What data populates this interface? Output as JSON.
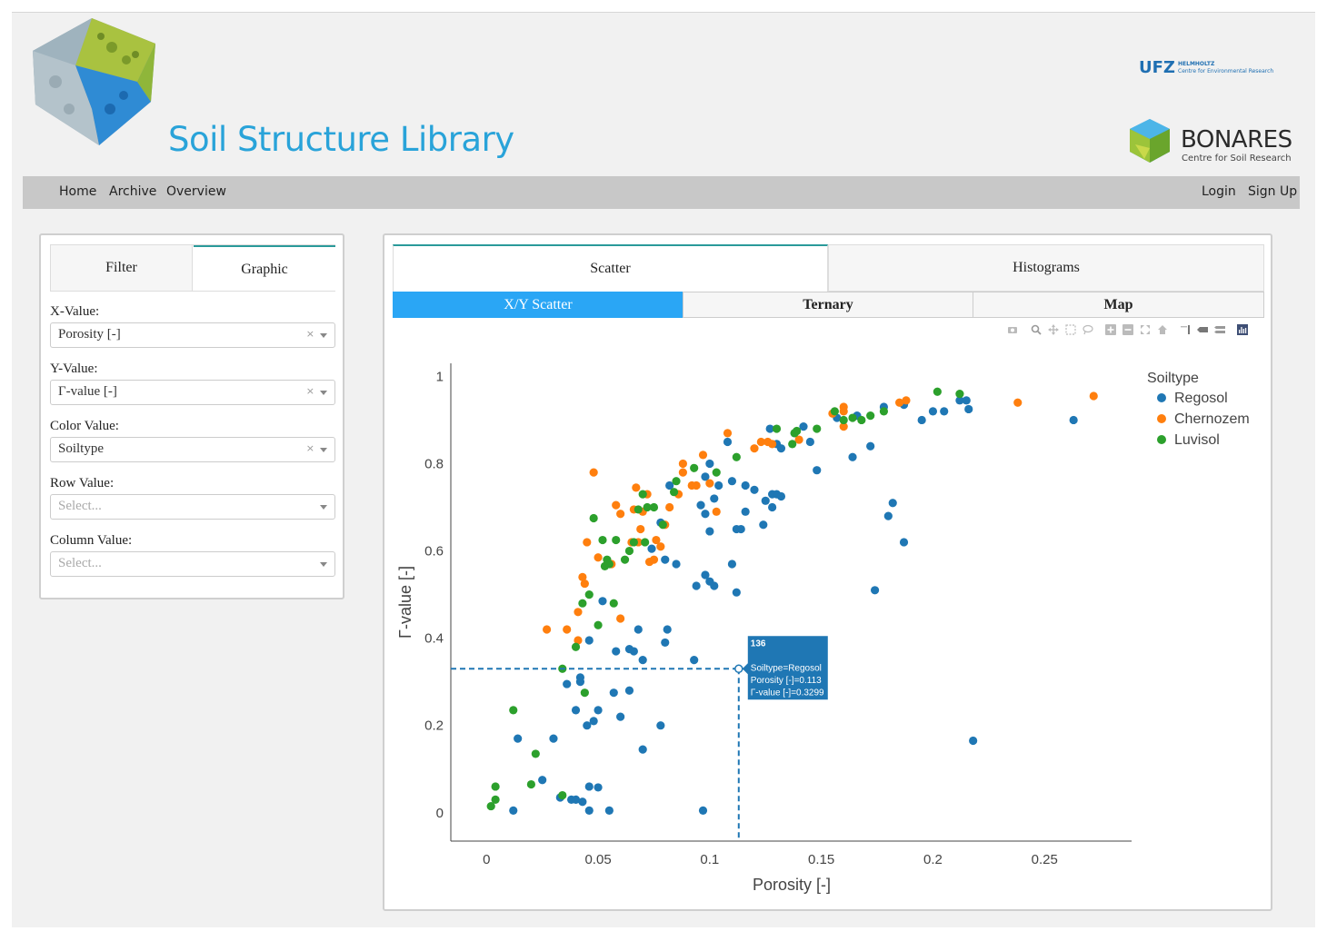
{
  "header": {
    "site_title": "Soil Structure Library",
    "ufz": {
      "mark": "UFZ",
      "line1": "HELMHOLTZ",
      "line2": "Centre for Environmental Research"
    },
    "bonares": {
      "name": "BONARES",
      "subtitle": "Centre for Soil Research"
    }
  },
  "nav": {
    "left": [
      "Home",
      "Archive",
      "Overview"
    ],
    "right": [
      "Login",
      "Sign Up"
    ]
  },
  "sidebar": {
    "tabs": {
      "filter": "Filter",
      "graphic": "Graphic",
      "active": "Graphic"
    },
    "fields": [
      {
        "label": "X-Value:",
        "value": "Porosity [-]",
        "placeholder": ""
      },
      {
        "label": "Y-Value:",
        "value": "Γ-value [-]",
        "placeholder": ""
      },
      {
        "label": "Color Value:",
        "value": "Soiltype",
        "placeholder": ""
      },
      {
        "label": "Row Value:",
        "value": "",
        "placeholder": "Select..."
      },
      {
        "label": "Column Value:",
        "value": "",
        "placeholder": "Select..."
      }
    ],
    "clear_glyph": "×"
  },
  "main": {
    "tabs": [
      "Scatter",
      "Histograms"
    ],
    "active_tab": "Scatter",
    "sub_tabs": [
      "X/Y Scatter",
      "Ternary",
      "Map"
    ],
    "active_sub_tab": "X/Y Scatter",
    "modebar_icons": [
      "camera-icon",
      "zoom-icon",
      "pan-icon",
      "box-select-icon",
      "lasso-select-icon",
      "zoom-in-icon",
      "zoom-out-icon",
      "autoscale-icon",
      "reset-axes-icon",
      "spike-lines-icon",
      "hover-closest-icon",
      "hover-compare-icon",
      "plotly-logo-icon"
    ]
  },
  "chart_data": {
    "type": "scatter",
    "xlabel": "Porosity [-]",
    "ylabel": "Γ-value [-]",
    "xlim": [
      -0.016,
      0.289
    ],
    "ylim": [
      -0.065,
      1.03
    ],
    "xticks": [
      0,
      0.05,
      0.1,
      0.15,
      0.2,
      0.25
    ],
    "xtick_labels": [
      "0",
      "0.05",
      "0.1",
      "0.15",
      "0.2",
      "0.25"
    ],
    "yticks": [
      0,
      0.2,
      0.4,
      0.6,
      0.8,
      1
    ],
    "ytick_labels": [
      "0",
      "0.2",
      "0.4",
      "0.6",
      "0.8",
      "1"
    ],
    "grid": false,
    "legend": {
      "title": "Soiltype",
      "position": "top-right"
    },
    "series": [
      {
        "name": "Regosol",
        "color": "#1f77b4",
        "points": [
          [
            0.012,
            0.005
          ],
          [
            0.014,
            0.17
          ],
          [
            0.03,
            0.17
          ],
          [
            0.025,
            0.075
          ],
          [
            0.033,
            0.035
          ],
          [
            0.038,
            0.03
          ],
          [
            0.04,
            0.03
          ],
          [
            0.043,
            0.025
          ],
          [
            0.046,
            0.005
          ],
          [
            0.055,
            0.005
          ],
          [
            0.046,
            0.06
          ],
          [
            0.05,
            0.058
          ],
          [
            0.036,
            0.295
          ],
          [
            0.04,
            0.235
          ],
          [
            0.042,
            0.31
          ],
          [
            0.042,
            0.3
          ],
          [
            0.045,
            0.2
          ],
          [
            0.048,
            0.21
          ],
          [
            0.05,
            0.235
          ],
          [
            0.057,
            0.275
          ],
          [
            0.06,
            0.22
          ],
          [
            0.064,
            0.28
          ],
          [
            0.046,
            0.395
          ],
          [
            0.052,
            0.485
          ],
          [
            0.058,
            0.37
          ],
          [
            0.066,
            0.37
          ],
          [
            0.068,
            0.42
          ],
          [
            0.07,
            0.35
          ],
          [
            0.07,
            0.145
          ],
          [
            0.078,
            0.2
          ],
          [
            0.08,
            0.39
          ],
          [
            0.081,
            0.42
          ],
          [
            0.093,
            0.35
          ],
          [
            0.097,
            0.005
          ],
          [
            0.113,
            0.3299
          ],
          [
            0.064,
            0.375
          ],
          [
            0.074,
            0.605
          ],
          [
            0.078,
            0.665
          ],
          [
            0.08,
            0.58
          ],
          [
            0.085,
            0.57
          ],
          [
            0.082,
            0.75
          ],
          [
            0.094,
            0.52
          ],
          [
            0.098,
            0.545
          ],
          [
            0.1,
            0.53
          ],
          [
            0.102,
            0.52
          ],
          [
            0.096,
            0.705
          ],
          [
            0.098,
            0.685
          ],
          [
            0.1,
            0.645
          ],
          [
            0.102,
            0.72
          ],
          [
            0.11,
            0.57
          ],
          [
            0.112,
            0.505
          ],
          [
            0.1,
            0.8
          ],
          [
            0.108,
            0.85
          ],
          [
            0.098,
            0.77
          ],
          [
            0.104,
            0.75
          ],
          [
            0.11,
            0.76
          ],
          [
            0.114,
            0.65
          ],
          [
            0.112,
            0.65
          ],
          [
            0.116,
            0.69
          ],
          [
            0.116,
            0.75
          ],
          [
            0.12,
            0.74
          ],
          [
            0.124,
            0.66
          ],
          [
            0.125,
            0.715
          ],
          [
            0.128,
            0.7
          ],
          [
            0.128,
            0.73
          ],
          [
            0.13,
            0.73
          ],
          [
            0.132,
            0.725
          ],
          [
            0.127,
            0.88
          ],
          [
            0.13,
            0.845
          ],
          [
            0.132,
            0.835
          ],
          [
            0.138,
            0.87
          ],
          [
            0.142,
            0.885
          ],
          [
            0.145,
            0.85
          ],
          [
            0.148,
            0.785
          ],
          [
            0.157,
            0.905
          ],
          [
            0.164,
            0.815
          ],
          [
            0.166,
            0.91
          ],
          [
            0.172,
            0.84
          ],
          [
            0.174,
            0.51
          ],
          [
            0.18,
            0.68
          ],
          [
            0.182,
            0.71
          ],
          [
            0.187,
            0.62
          ],
          [
            0.178,
            0.93
          ],
          [
            0.187,
            0.935
          ],
          [
            0.195,
            0.9
          ],
          [
            0.2,
            0.92
          ],
          [
            0.205,
            0.92
          ],
          [
            0.212,
            0.945
          ],
          [
            0.215,
            0.945
          ],
          [
            0.216,
            0.925
          ],
          [
            0.218,
            0.165
          ],
          [
            0.263,
            0.9
          ]
        ]
      },
      {
        "name": "Chernozem",
        "color": "#ff7f0e",
        "points": [
          [
            0.027,
            0.42
          ],
          [
            0.036,
            0.42
          ],
          [
            0.041,
            0.395
          ],
          [
            0.041,
            0.46
          ],
          [
            0.043,
            0.54
          ],
          [
            0.044,
            0.525
          ],
          [
            0.045,
            0.62
          ],
          [
            0.048,
            0.78
          ],
          [
            0.05,
            0.585
          ],
          [
            0.056,
            0.57
          ],
          [
            0.058,
            0.705
          ],
          [
            0.06,
            0.685
          ],
          [
            0.06,
            0.445
          ],
          [
            0.065,
            0.62
          ],
          [
            0.066,
            0.695
          ],
          [
            0.067,
            0.745
          ],
          [
            0.068,
            0.62
          ],
          [
            0.069,
            0.65
          ],
          [
            0.07,
            0.69
          ],
          [
            0.072,
            0.73
          ],
          [
            0.073,
            0.575
          ],
          [
            0.075,
            0.58
          ],
          [
            0.076,
            0.625
          ],
          [
            0.078,
            0.61
          ],
          [
            0.08,
            0.66
          ],
          [
            0.082,
            0.7
          ],
          [
            0.086,
            0.73
          ],
          [
            0.088,
            0.78
          ],
          [
            0.088,
            0.8
          ],
          [
            0.092,
            0.75
          ],
          [
            0.094,
            0.75
          ],
          [
            0.097,
            0.82
          ],
          [
            0.1,
            0.755
          ],
          [
            0.103,
            0.69
          ],
          [
            0.108,
            0.87
          ],
          [
            0.12,
            0.835
          ],
          [
            0.123,
            0.85
          ],
          [
            0.126,
            0.85
          ],
          [
            0.128,
            0.845
          ],
          [
            0.14,
            0.855
          ],
          [
            0.155,
            0.915
          ],
          [
            0.16,
            0.93
          ],
          [
            0.16,
            0.885
          ],
          [
            0.16,
            0.92
          ],
          [
            0.185,
            0.94
          ],
          [
            0.188,
            0.945
          ],
          [
            0.238,
            0.94
          ],
          [
            0.272,
            0.955
          ]
        ]
      },
      {
        "name": "Luvisol",
        "color": "#2ca02c",
        "points": [
          [
            0.002,
            0.015
          ],
          [
            0.004,
            0.03
          ],
          [
            0.004,
            0.06
          ],
          [
            0.012,
            0.235
          ],
          [
            0.02,
            0.065
          ],
          [
            0.022,
            0.135
          ],
          [
            0.034,
            0.33
          ],
          [
            0.034,
            0.04
          ],
          [
            0.04,
            0.38
          ],
          [
            0.043,
            0.48
          ],
          [
            0.044,
            0.275
          ],
          [
            0.046,
            0.5
          ],
          [
            0.048,
            0.675
          ],
          [
            0.05,
            0.43
          ],
          [
            0.052,
            0.625
          ],
          [
            0.053,
            0.565
          ],
          [
            0.054,
            0.58
          ],
          [
            0.055,
            0.57
          ],
          [
            0.057,
            0.48
          ],
          [
            0.058,
            0.625
          ],
          [
            0.062,
            0.58
          ],
          [
            0.064,
            0.6
          ],
          [
            0.066,
            0.62
          ],
          [
            0.068,
            0.695
          ],
          [
            0.07,
            0.73
          ],
          [
            0.071,
            0.62
          ],
          [
            0.072,
            0.7
          ],
          [
            0.075,
            0.7
          ],
          [
            0.079,
            0.66
          ],
          [
            0.084,
            0.735
          ],
          [
            0.085,
            0.76
          ],
          [
            0.093,
            0.79
          ],
          [
            0.103,
            0.78
          ],
          [
            0.112,
            0.815
          ],
          [
            0.13,
            0.88
          ],
          [
            0.137,
            0.845
          ],
          [
            0.138,
            0.87
          ],
          [
            0.139,
            0.875
          ],
          [
            0.148,
            0.88
          ],
          [
            0.156,
            0.92
          ],
          [
            0.16,
            0.9
          ],
          [
            0.164,
            0.905
          ],
          [
            0.168,
            0.9
          ],
          [
            0.172,
            0.91
          ],
          [
            0.178,
            0.92
          ],
          [
            0.202,
            0.965
          ],
          [
            0.212,
            0.96
          ]
        ]
      }
    ],
    "hover": {
      "index": "136",
      "lines": [
        "Soiltype=Regosol",
        "Porosity [-]=0.113",
        "Γ-value [-]=0.3299"
      ],
      "x": 0.113,
      "y": 0.3299,
      "series": "Regosol"
    }
  }
}
